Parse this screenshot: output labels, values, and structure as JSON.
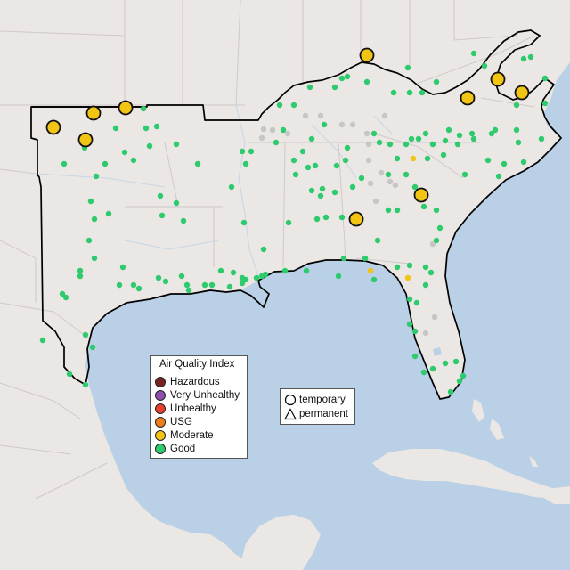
{
  "legend": {
    "title": "Air Quality Index",
    "categories": [
      {
        "label": "Hazardous",
        "color": "#7a2222"
      },
      {
        "label": "Very Unhealthy",
        "color": "#8f4fae"
      },
      {
        "label": "Unhealthy",
        "color": "#e8402c"
      },
      {
        "label": "USG",
        "color": "#f07d1c"
      },
      {
        "label": "Moderate",
        "color": "#f2c413"
      },
      {
        "label": "Good",
        "color": "#2ecb6e"
      }
    ]
  },
  "type_legend": {
    "items": [
      {
        "label": "temporary",
        "shape": "circle"
      },
      {
        "label": "permanent",
        "shape": "triangle"
      }
    ]
  },
  "colors": {
    "ocean": "#b9d0e6",
    "land": "#ebe7e4",
    "border": "#cfcaca",
    "region_outline": "#000000",
    "no_data": "#c6c6c6",
    "moderate": "#f2c413",
    "good": "#2ecb6e"
  }
}
